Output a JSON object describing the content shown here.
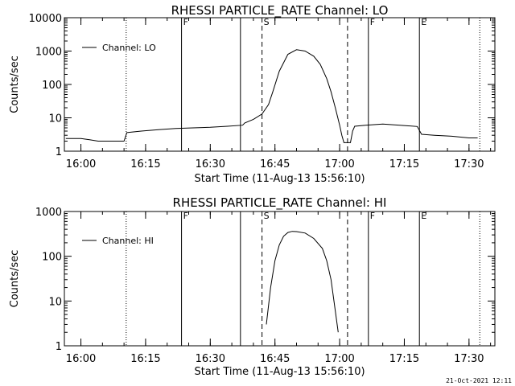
{
  "timestamp": "21-Oct-2021 12:11",
  "chart_data": [
    {
      "type": "line",
      "title": "RHESSI PARTICLE_RATE Channel: LO",
      "xlabel": "Start Time (11-Aug-13 15:56:10)",
      "ylabel": "Counts/sec",
      "yscale": "log",
      "ylim": [
        1,
        10000
      ],
      "xlim": [
        "15:56:10",
        "17:36:00"
      ],
      "x_ticks": [
        "16:00",
        "16:15",
        "16:30",
        "16:45",
        "17:00",
        "17:15",
        "17:30"
      ],
      "y_ticks": [
        "1",
        "10",
        "100",
        "1000",
        "10000"
      ],
      "legend": {
        "placement": "top-left",
        "entries": [
          "Channel: LO"
        ]
      },
      "grid": false,
      "markers": [
        {
          "label": "F",
          "time": "16:23:20",
          "style": "solid"
        },
        {
          "label": "",
          "time": "16:10:30",
          "style": "dotted"
        },
        {
          "label": "",
          "time": "16:37:00",
          "style": "solid"
        },
        {
          "label": "S",
          "time": "16:42:00",
          "style": "dashed"
        },
        {
          "label": "",
          "time": "17:01:50",
          "style": "dashed"
        },
        {
          "label": "F",
          "time": "17:06:40",
          "style": "solid"
        },
        {
          "label": "E",
          "time": "17:18:30",
          "style": "solid"
        },
        {
          "label": "",
          "time": "17:32:30",
          "style": "dotted"
        }
      ],
      "series": [
        {
          "name": "Channel: LO",
          "x": [
            "15:56:30",
            "16:00:00",
            "16:02:00",
            "16:04:00",
            "16:06:00",
            "16:08:00",
            "16:10:00",
            "16:10:40",
            "16:14:00",
            "16:18:00",
            "16:22:00",
            "16:26:00",
            "16:30:00",
            "16:34:00",
            "16:37:30",
            "16:38:00",
            "16:40:00",
            "16:42:00",
            "16:43:30",
            "16:44:30",
            "16:46:00",
            "16:48:00",
            "16:50:00",
            "16:52:00",
            "16:54:00",
            "16:55:30",
            "16:57:00",
            "16:58:00",
            "16:59:00",
            "17:00:00",
            "17:00:30",
            "17:01:00",
            "17:02:30",
            "17:03:00",
            "17:03:30",
            "17:06:00",
            "17:10:00",
            "17:14:00",
            "17:18:00",
            "17:19:00",
            "17:22:00",
            "17:26:00",
            "17:30:00",
            "17:32:00"
          ],
          "y": [
            2.4,
            2.4,
            2.2,
            2.0,
            2.0,
            2.0,
            2.0,
            3.6,
            4.0,
            4.4,
            4.8,
            5.0,
            5.2,
            5.6,
            6.0,
            7.0,
            9.0,
            13.0,
            25.0,
            60.0,
            250.0,
            800.0,
            1100.0,
            1000.0,
            700.0,
            400.0,
            150.0,
            60.0,
            20.0,
            6.0,
            3.0,
            1.8,
            1.8,
            4.0,
            5.6,
            6.0,
            6.5,
            6.0,
            5.5,
            3.2,
            3.0,
            2.8,
            2.5,
            2.5
          ]
        }
      ]
    },
    {
      "type": "line",
      "title": "RHESSI PARTICLE_RATE Channel: HI",
      "xlabel": "Start Time (11-Aug-13 15:56:10)",
      "ylabel": "Counts/sec",
      "yscale": "log",
      "ylim": [
        1,
        1000
      ],
      "xlim": [
        "15:56:10",
        "17:36:00"
      ],
      "x_ticks": [
        "16:00",
        "16:15",
        "16:30",
        "16:45",
        "17:00",
        "17:15",
        "17:30"
      ],
      "y_ticks": [
        "1",
        "10",
        "100",
        "1000"
      ],
      "legend": {
        "placement": "top-left",
        "entries": [
          "Channel: HI"
        ]
      },
      "grid": false,
      "markers": [
        {
          "label": "F",
          "time": "16:23:20",
          "style": "solid"
        },
        {
          "label": "",
          "time": "16:10:30",
          "style": "dotted"
        },
        {
          "label": "",
          "time": "16:37:00",
          "style": "solid"
        },
        {
          "label": "S",
          "time": "16:42:00",
          "style": "dashed"
        },
        {
          "label": "",
          "time": "17:01:50",
          "style": "dashed"
        },
        {
          "label": "F",
          "time": "17:06:40",
          "style": "solid"
        },
        {
          "label": "E",
          "time": "17:18:30",
          "style": "solid"
        },
        {
          "label": "",
          "time": "17:32:30",
          "style": "dotted"
        }
      ],
      "series": [
        {
          "name": "Channel: HI",
          "x": [
            "16:43:00",
            "16:44:00",
            "16:45:00",
            "16:46:00",
            "16:47:00",
            "16:48:00",
            "16:49:00",
            "16:50:00",
            "16:52:00",
            "16:54:00",
            "16:56:00",
            "16:57:00",
            "16:58:00",
            "16:59:00",
            "16:59:40"
          ],
          "y": [
            3.0,
            20.0,
            80.0,
            180.0,
            280.0,
            340.0,
            360.0,
            355.0,
            330.0,
            250.0,
            150.0,
            80.0,
            30.0,
            6.0,
            2.0
          ]
        }
      ]
    }
  ]
}
